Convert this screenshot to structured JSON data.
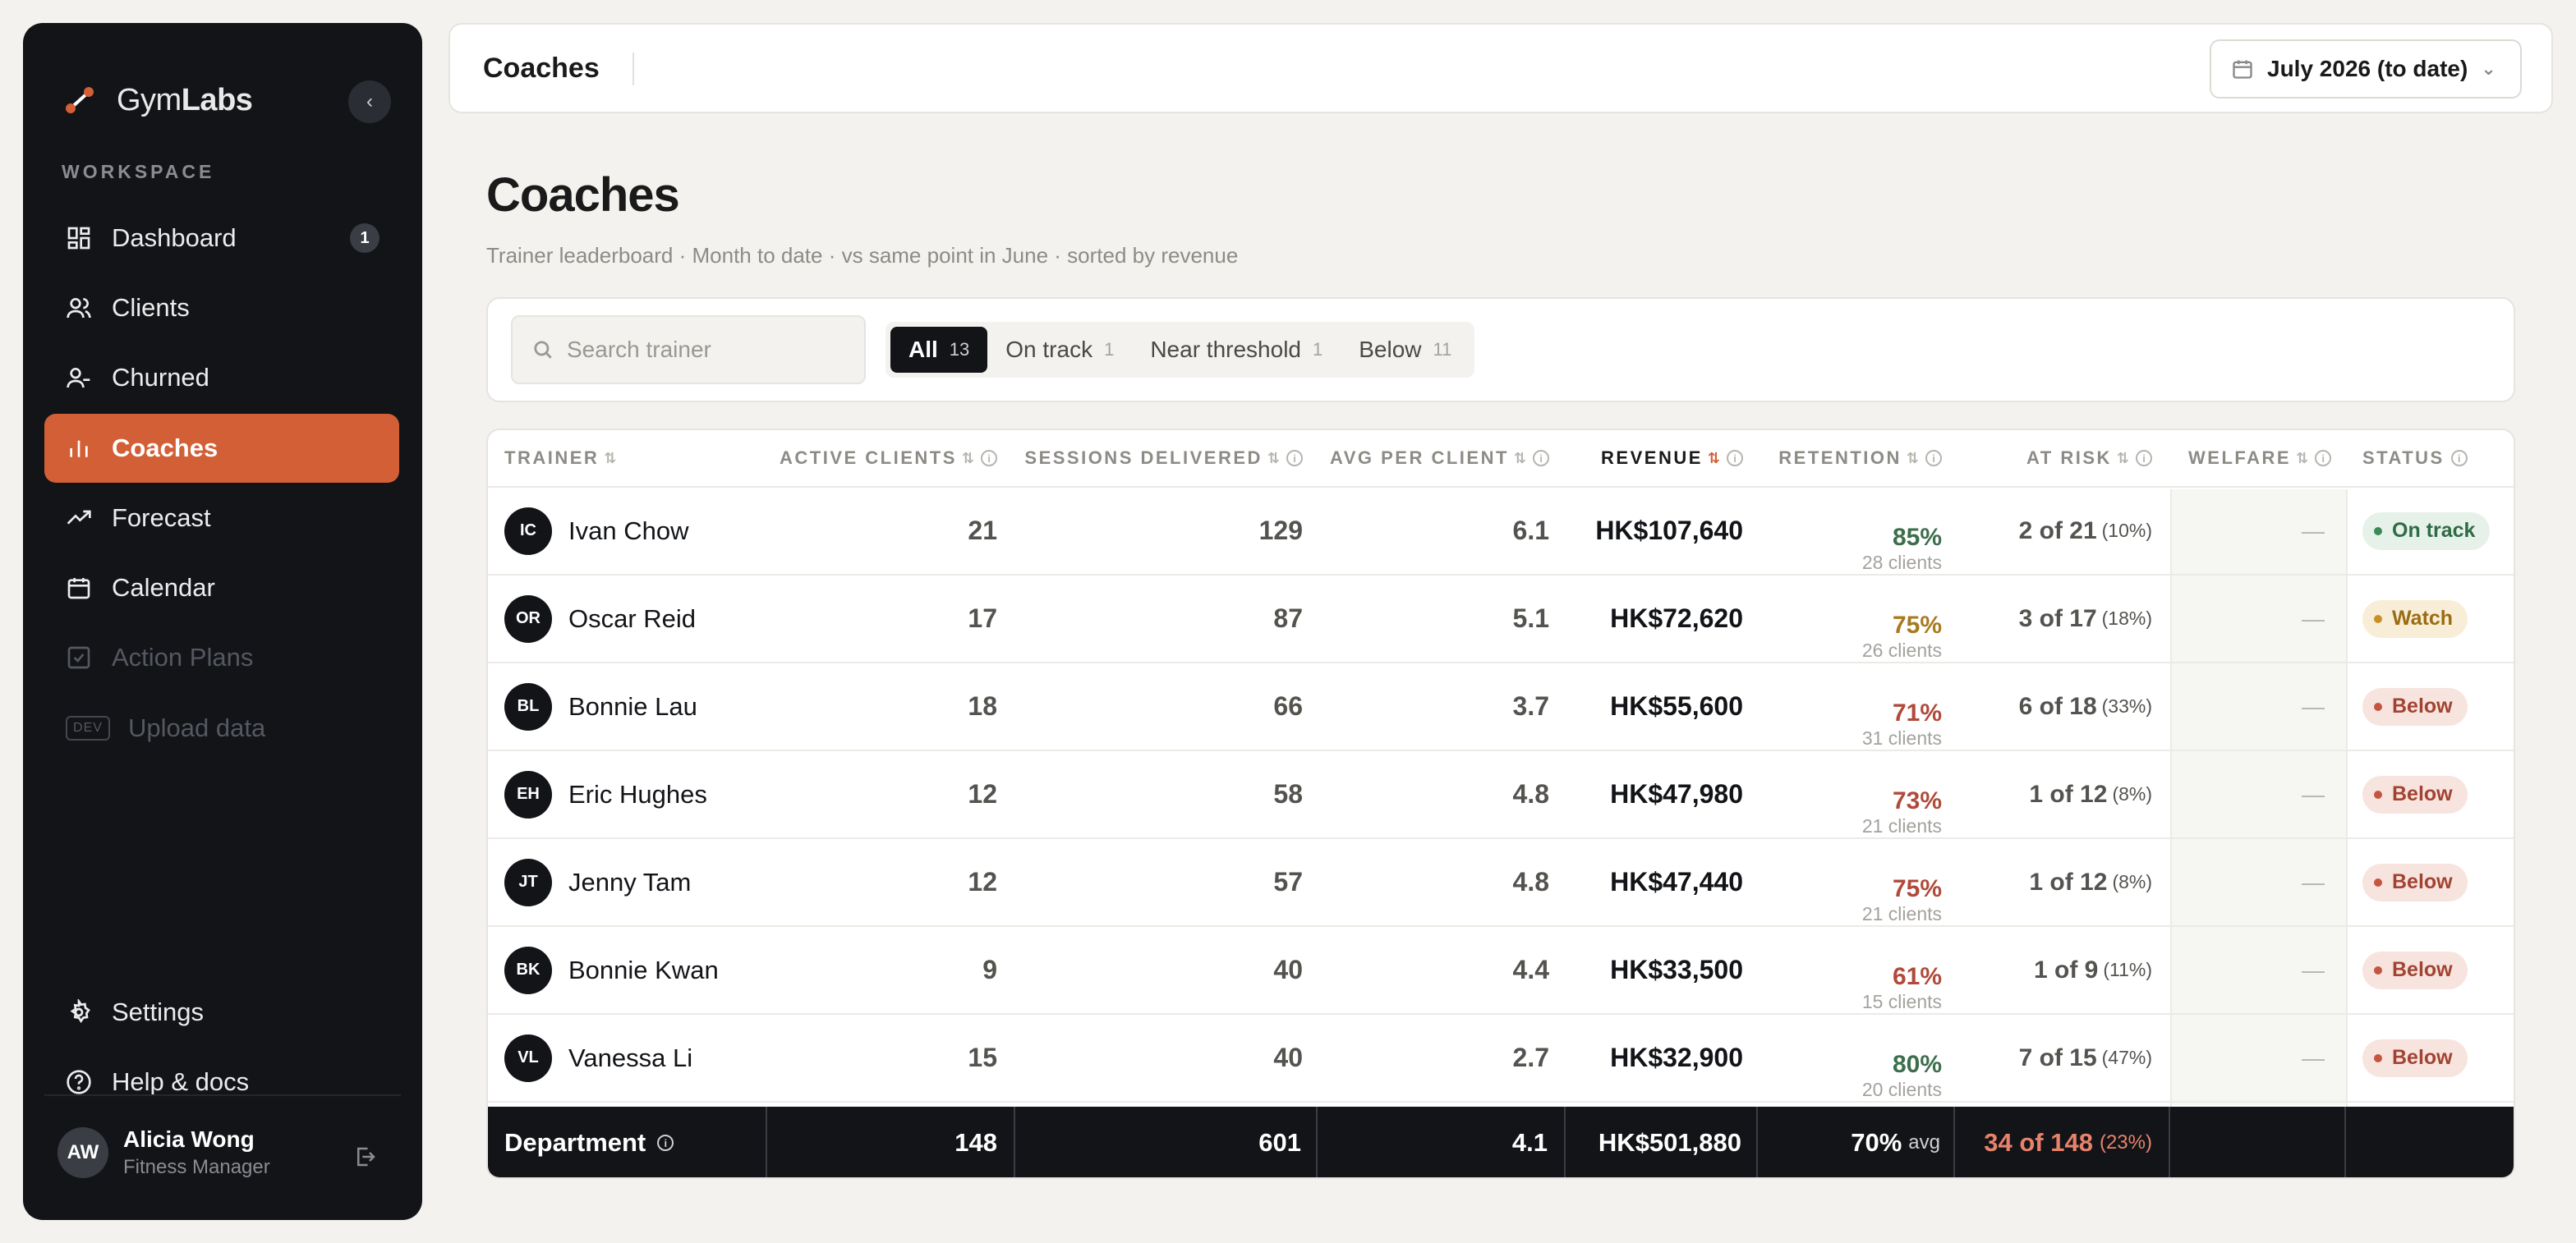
{
  "sidebar": {
    "brand_light": "Gym",
    "brand_bold": "Labs",
    "section_label": "WORKSPACE",
    "items": [
      {
        "label": "Dashboard",
        "icon": "dashboard-icon",
        "count": "1"
      },
      {
        "label": "Clients",
        "icon": "users-icon"
      },
      {
        "label": "Churned",
        "icon": "user-minus-icon"
      },
      {
        "label": "Coaches",
        "icon": "bar-chart-icon",
        "active": true
      },
      {
        "label": "Forecast",
        "icon": "trend-icon"
      },
      {
        "label": "Calendar",
        "icon": "calendar-icon"
      },
      {
        "label": "Action Plans",
        "icon": "checkbox-icon",
        "disabled": true
      },
      {
        "label": "Upload data",
        "tag": "DEV",
        "disabled": true
      }
    ],
    "bottom": [
      {
        "label": "Settings",
        "icon": "gear-icon"
      },
      {
        "label": "Help & docs",
        "icon": "help-icon"
      }
    ],
    "user": {
      "initials": "AW",
      "name": "Alicia Wong",
      "role": "Fitness Manager"
    },
    "accent": "#d25f35"
  },
  "topbar": {
    "title": "Coaches",
    "date_range": "July 2026 (to date)"
  },
  "header": {
    "title": "Coaches",
    "subtitle": "Trainer leaderboard · Month to date · vs same point in June · sorted by revenue"
  },
  "filters": {
    "search_placeholder": "Search trainer",
    "segments": [
      {
        "label": "All",
        "count": "13"
      },
      {
        "label": "On track",
        "count": "1"
      },
      {
        "label": "Near threshold",
        "count": "1"
      },
      {
        "label": "Below",
        "count": "11"
      }
    ]
  },
  "table": {
    "columns": [
      "TRAINER",
      "ACTIVE CLIENTS",
      "SESSIONS DELIVERED",
      "AVG PER CLIENT",
      "REVENUE",
      "RETENTION",
      "AT RISK",
      "WELFARE",
      "STATUS"
    ],
    "rows": [
      {
        "initials": "IC",
        "name": "Ivan Chow",
        "active": "21",
        "sessions": "129",
        "avg": "6.1",
        "revenue": "HK$107,640",
        "retention": "85%",
        "ret_clients": "28 clients",
        "at_risk": "2 of 21",
        "at_risk_pct": "(10%)",
        "welfare": "—",
        "status": "On track"
      },
      {
        "initials": "OR",
        "name": "Oscar Reid",
        "active": "17",
        "sessions": "87",
        "avg": "5.1",
        "revenue": "HK$72,620",
        "retention": "75%",
        "ret_clients": "26 clients",
        "at_risk": "3 of 17",
        "at_risk_pct": "(18%)",
        "welfare": "—",
        "status": "Watch"
      },
      {
        "initials": "BL",
        "name": "Bonnie Lau",
        "active": "18",
        "sessions": "66",
        "avg": "3.7",
        "revenue": "HK$55,600",
        "retention": "71%",
        "ret_clients": "31 clients",
        "at_risk": "6 of 18",
        "at_risk_pct": "(33%)",
        "welfare": "—",
        "status": "Below"
      },
      {
        "initials": "EH",
        "name": "Eric Hughes",
        "active": "12",
        "sessions": "58",
        "avg": "4.8",
        "revenue": "HK$47,980",
        "retention": "73%",
        "ret_clients": "21 clients",
        "at_risk": "1 of 12",
        "at_risk_pct": "(8%)",
        "welfare": "—",
        "status": "Below"
      },
      {
        "initials": "JT",
        "name": "Jenny Tam",
        "active": "12",
        "sessions": "57",
        "avg": "4.8",
        "revenue": "HK$47,440",
        "retention": "75%",
        "ret_clients": "21 clients",
        "at_risk": "1 of 12",
        "at_risk_pct": "(8%)",
        "welfare": "—",
        "status": "Below"
      },
      {
        "initials": "BK",
        "name": "Bonnie Kwan",
        "active": "9",
        "sessions": "40",
        "avg": "4.4",
        "revenue": "HK$33,500",
        "retention": "61%",
        "ret_clients": "15 clients",
        "at_risk": "1 of 9",
        "at_risk_pct": "(11%)",
        "welfare": "—",
        "status": "Below"
      },
      {
        "initials": "VL",
        "name": "Vanessa Li",
        "active": "15",
        "sessions": "40",
        "avg": "2.7",
        "revenue": "HK$32,900",
        "retention": "80%",
        "ret_clients": "20 clients",
        "at_risk": "7 of 15",
        "at_risk_pct": "(47%)",
        "welfare": "—",
        "status": "Below"
      }
    ],
    "footer": {
      "label": "Department",
      "active": "148",
      "sessions": "601",
      "avg": "4.1",
      "revenue": "HK$501,880",
      "retention": "70%",
      "retention_suffix": "avg",
      "at_risk": "34 of 148",
      "at_risk_pct": "(23%)"
    }
  }
}
